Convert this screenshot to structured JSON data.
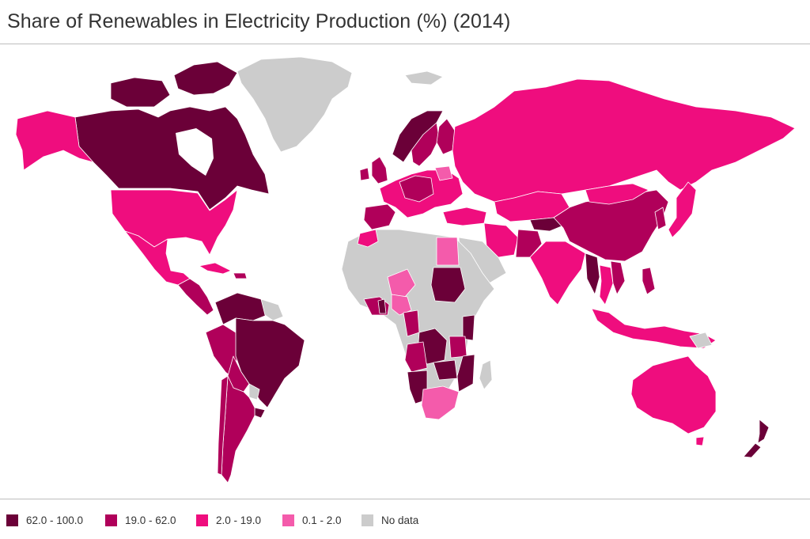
{
  "title": "Share of Renewables in Electricity Production (%) (2014)",
  "colors": {
    "c62_100": "#6b0038",
    "c19_62": "#b0005a",
    "c2_19": "#ef0d7e",
    "c01_2": "#f45bab",
    "no_data": "#cccccc",
    "ocean": "#ffffff"
  },
  "legend": [
    {
      "label": "62.0 - 100.0",
      "color": "#6b0038"
    },
    {
      "label": "19.0 - 62.0",
      "color": "#b0005a"
    },
    {
      "label": "2.0 - 19.0",
      "color": "#ef0d7e"
    },
    {
      "label": "0.1 - 2.0",
      "color": "#f45bab"
    },
    {
      "label": "No data",
      "color": "#cccccc"
    }
  ]
}
